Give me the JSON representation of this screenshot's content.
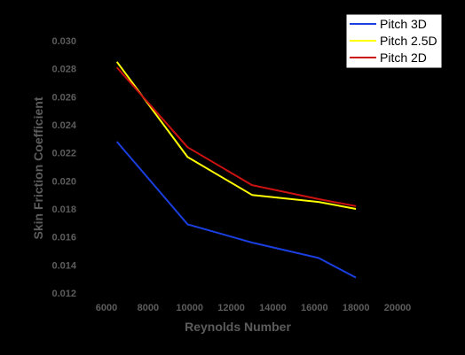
{
  "chart_data": {
    "type": "line",
    "title": "",
    "xlabel": "Reynolds Number",
    "ylabel": "Skin Friction Coefficient",
    "xlim": [
      6000,
      20000
    ],
    "ylim": [
      0.012,
      0.03
    ],
    "x_ticks": [
      "6000",
      "8000",
      "10000",
      "12000",
      "14000",
      "16000",
      "18000",
      "20000"
    ],
    "y_ticks": [
      "0.012",
      "0.014",
      "0.016",
      "0.018",
      "0.020",
      "0.022",
      "0.024",
      "0.026",
      "0.028",
      "0.030"
    ],
    "grid": false,
    "legend_position": "top-right",
    "series": [
      {
        "name": "Pitch 3D",
        "color": "#1a3fe0",
        "x": [
          6500,
          9900,
          13000,
          16200,
          18000
        ],
        "y": [
          0.0228,
          0.0169,
          0.0156,
          0.0145,
          0.0131
        ]
      },
      {
        "name": "Pitch 2.5D",
        "color": "#ffff00",
        "x": [
          6500,
          9900,
          13000,
          16200,
          18000
        ],
        "y": [
          0.0285,
          0.0217,
          0.019,
          0.0185,
          0.018
        ]
      },
      {
        "name": "Pitch 2D",
        "color": "#cc1111",
        "x": [
          6500,
          9900,
          13000,
          16200,
          18000
        ],
        "y": [
          0.0281,
          0.0224,
          0.0197,
          0.0187,
          0.0182
        ]
      }
    ]
  }
}
